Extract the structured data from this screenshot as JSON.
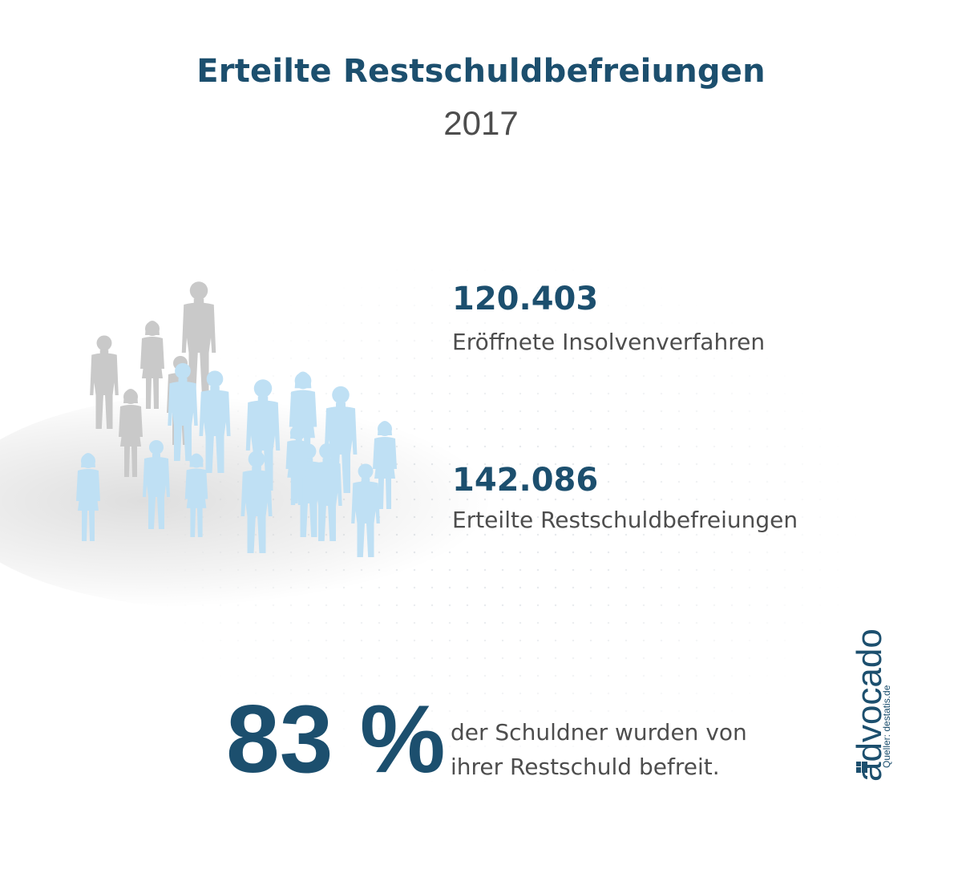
{
  "header": {
    "title": "Erteilte Restschuldbefreiungen",
    "year": "2017"
  },
  "stats": [
    {
      "value": "120.403",
      "label": "Eröffnete Insolvenverfahren"
    },
    {
      "value": "142.086",
      "label": "Erteilte Restschuldbefreiungen"
    }
  ],
  "summary": {
    "percent": "83 %",
    "line1": "der Schuldner wurden von",
    "line2": "ihrer Restschuld befreit."
  },
  "brand": {
    "logo_text": "advocado",
    "source": "Queller: destatis.de"
  },
  "colors": {
    "accent": "#1c4f6e",
    "text_gray": "#4d4d4d",
    "figure_gray": "#c9c9c9",
    "figure_blue": "#bfe0f4"
  },
  "illustration": {
    "icon": "people-crowd-icon",
    "figures_gray": 6,
    "figures_blue": 14
  }
}
